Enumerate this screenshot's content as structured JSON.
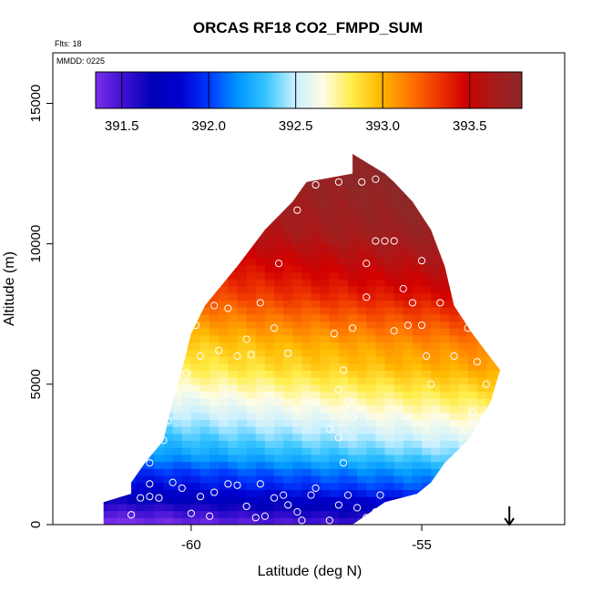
{
  "chart_data": {
    "type": "heatmap",
    "title": "ORCAS RF18 CO2_FMPD_SUM",
    "flts_label": "Flts: 18",
    "mmdd_label": "MMDD: 0225",
    "xlabel": "Latitude (deg N)",
    "ylabel": "Altitude (m)",
    "xlim": [
      -63.0,
      -51.9
    ],
    "ylim": [
      0,
      16800
    ],
    "x_ticks": [
      -60,
      -55
    ],
    "x_tick_labels": [
      "-60",
      "-55"
    ],
    "y_ticks": [
      0,
      5000,
      10000,
      15000
    ],
    "y_tick_labels": [
      "0",
      "5000",
      "10000",
      "15000"
    ],
    "colorbar": {
      "range": [
        391.35,
        393.8
      ],
      "ticks": [
        391.5,
        392.0,
        392.5,
        393.0,
        393.5
      ],
      "tick_labels": [
        "391.5",
        "392.0",
        "392.5",
        "393.0",
        "393.5"
      ],
      "colors": [
        "#7a2ee8",
        "#3c10d2",
        "#0000b8",
        "#0000d0",
        "#0038ff",
        "#0096ff",
        "#36c4ff",
        "#c8f0ff",
        "#fffce6",
        "#ffee4a",
        "#ffb800",
        "#ff7a00",
        "#f03a00",
        "#d20000",
        "#a81a1a",
        "#8c2828"
      ]
    },
    "envelope": {
      "comment": "latitude extent of the curtain at each altitude (data units)",
      "altitudes": [
        0,
        800,
        1100,
        1500,
        2200,
        3000,
        4400,
        5500,
        6800,
        7800,
        9200,
        10500,
        11500,
        12200,
        12500,
        13200
      ],
      "lat_min": [
        -61.9,
        -61.9,
        -61.3,
        -61.3,
        -61.0,
        -60.6,
        -60.4,
        -60.2,
        -60.0,
        -59.7,
        -59.0,
        -58.4,
        -57.8,
        -57.5,
        -56.5,
        -56.5
      ],
      "lat_max": [
        -56.5,
        -55.8,
        -55.1,
        -54.8,
        -54.5,
        -54.0,
        -53.5,
        -53.3,
        -53.9,
        -54.3,
        -54.5,
        -54.8,
        -55.2,
        -55.6,
        -55.8,
        -56.5
      ]
    },
    "profile": {
      "comment": "approximate CO2 (ppm) vs altitude (m) near the curtain center",
      "altitudes": [
        0,
        400,
        800,
        1300,
        1900,
        2500,
        3200,
        4000,
        4800,
        5600,
        6400,
        7200,
        8200,
        9300,
        10500,
        12500
      ],
      "values": [
        391.45,
        391.6,
        391.75,
        391.95,
        392.1,
        392.3,
        392.45,
        392.6,
        392.75,
        392.9,
        393.0,
        393.15,
        393.35,
        393.5,
        393.65,
        393.75
      ]
    },
    "observations": {
      "comment": "white circle markers: [latitude, altitude_m]",
      "points": [
        [
          -61.3,
          350
        ],
        [
          -61.1,
          950
        ],
        [
          -60.9,
          1450
        ],
        [
          -60.7,
          950
        ],
        [
          -60.4,
          1500
        ],
        [
          -60.2,
          1300
        ],
        [
          -60.0,
          400
        ],
        [
          -59.8,
          1000
        ],
        [
          -59.6,
          300
        ],
        [
          -59.5,
          1150
        ],
        [
          -59.2,
          1450
        ],
        [
          -59.0,
          1400
        ],
        [
          -58.8,
          650
        ],
        [
          -58.6,
          250
        ],
        [
          -58.4,
          300
        ],
        [
          -58.2,
          950
        ],
        [
          -58.0,
          1050
        ],
        [
          -57.9,
          700
        ],
        [
          -57.7,
          450
        ],
        [
          -57.4,
          1050
        ],
        [
          -57.3,
          1300
        ],
        [
          -57.0,
          150
        ],
        [
          -56.8,
          700
        ],
        [
          -56.6,
          1050
        ],
        [
          -56.4,
          600
        ],
        [
          -56.2,
          250
        ],
        [
          -56.0,
          450
        ],
        [
          -55.9,
          1050
        ],
        [
          -57.6,
          150
        ],
        [
          -58.5,
          1450
        ],
        [
          -60.6,
          3000
        ],
        [
          -60.9,
          2200
        ],
        [
          -60.5,
          3700
        ],
        [
          -60.1,
          5400
        ],
        [
          -59.8,
          6000
        ],
        [
          -59.4,
          6200
        ],
        [
          -59.0,
          6000
        ],
        [
          -58.7,
          6050
        ],
        [
          -59.9,
          7100
        ],
        [
          -59.5,
          7800
        ],
        [
          -59.2,
          7700
        ],
        [
          -58.5,
          7900
        ],
        [
          -58.2,
          7000
        ],
        [
          -58.1,
          9300
        ],
        [
          -57.7,
          11200
        ],
        [
          -57.3,
          12100
        ],
        [
          -56.8,
          12200
        ],
        [
          -56.3,
          12200
        ],
        [
          -56.0,
          12300
        ],
        [
          -55.3,
          12200
        ],
        [
          -55.0,
          11900
        ],
        [
          -54.7,
          11000
        ],
        [
          -54.5,
          10000
        ],
        [
          -54.4,
          9400
        ],
        [
          -54.2,
          8000
        ],
        [
          -54.0,
          7000
        ],
        [
          -53.8,
          5800
        ],
        [
          -53.6,
          5000
        ],
        [
          -53.4,
          4300
        ],
        [
          -53.9,
          4000
        ],
        [
          -54.8,
          5000
        ],
        [
          -54.3,
          6000
        ],
        [
          -55.0,
          7100
        ],
        [
          -55.3,
          7100
        ],
        [
          -55.4,
          8400
        ],
        [
          -56.2,
          9300
        ],
        [
          -56.0,
          10100
        ],
        [
          -55.8,
          10100
        ],
        [
          -55.6,
          10100
        ],
        [
          -55.2,
          7900
        ],
        [
          -56.5,
          7000
        ],
        [
          -56.2,
          8100
        ],
        [
          -56.9,
          6800
        ],
        [
          -56.7,
          5500
        ],
        [
          -56.8,
          4800
        ],
        [
          -56.6,
          4400
        ],
        [
          -56.5,
          3800
        ],
        [
          -56.8,
          3100
        ],
        [
          -56.7,
          2200
        ],
        [
          -57.9,
          6100
        ],
        [
          -58.8,
          6600
        ],
        [
          -55.6,
          6900
        ],
        [
          -55.0,
          9400
        ],
        [
          -54.6,
          7900
        ],
        [
          -54.9,
          6000
        ],
        [
          -57.0,
          3400
        ],
        [
          -60.9,
          1000
        ]
      ]
    },
    "arrow_latitude": -53.1
  }
}
